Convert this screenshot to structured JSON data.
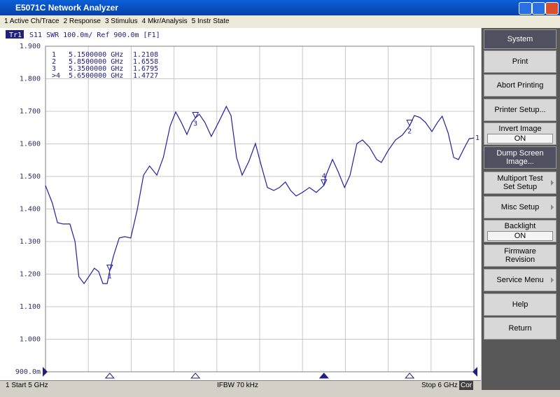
{
  "window": {
    "title": "E5071C Network Analyzer"
  },
  "menu": [
    "1 Active Ch/Trace",
    "2 Response",
    "3 Stimulus",
    "4 Mkr/Analysis",
    "5 Instr State"
  ],
  "softkeys": {
    "header": "System",
    "buttons": [
      {
        "label": "Print"
      },
      {
        "label": "Abort Printing"
      },
      {
        "label": "Printer Setup..."
      },
      {
        "label": "Invert Image",
        "state": "ON"
      },
      {
        "label": "Dump Screen Image...",
        "dark": true
      },
      {
        "label": "Multiport Test Set Setup",
        "arrow": true
      },
      {
        "label": "Misc Setup",
        "arrow": true
      },
      {
        "label": "Backlight",
        "state": "ON"
      },
      {
        "label": "Firmware Revision"
      },
      {
        "label": "Service Menu",
        "arrow": true
      },
      {
        "label": "Help"
      },
      {
        "label": "Return"
      }
    ]
  },
  "status": {
    "start": "1 Start 5 GHz",
    "ifbw": "IFBW 70 kHz",
    "stop": "Stop 6 GHz",
    "cor": "Cor"
  },
  "chart_data": {
    "type": "line",
    "trace_name": "Tr1",
    "title": "S11 SWR 100.0m/ Ref 900.0m [F1]",
    "color": "#2020a0",
    "x": [
      5.0,
      5.016,
      5.028,
      5.041,
      5.057,
      5.069,
      5.078,
      5.09,
      5.101,
      5.114,
      5.124,
      5.134,
      5.144,
      5.15,
      5.159,
      5.172,
      5.185,
      5.199,
      5.214,
      5.229,
      5.243,
      5.26,
      5.275,
      5.291,
      5.304,
      5.317,
      5.33,
      5.342,
      5.35,
      5.359,
      5.372,
      5.387,
      5.404,
      5.422,
      5.433,
      5.446,
      5.459,
      5.475,
      5.49,
      5.503,
      5.518,
      5.533,
      5.546,
      5.56,
      5.572,
      5.585,
      5.6,
      5.616,
      5.632,
      5.65,
      5.655,
      5.67,
      5.683,
      5.698,
      5.711,
      5.727,
      5.74,
      5.756,
      5.773,
      5.784,
      5.8,
      5.817,
      5.833,
      5.85,
      5.861,
      5.874,
      5.887,
      5.902,
      5.915,
      5.926,
      5.94,
      5.953,
      5.964,
      5.977,
      5.989,
      6.0
    ],
    "values": [
      1.472,
      1.418,
      1.358,
      1.354,
      1.354,
      1.3,
      1.192,
      1.171,
      1.192,
      1.218,
      1.208,
      1.171,
      1.171,
      1.2108,
      1.257,
      1.311,
      1.315,
      1.311,
      1.397,
      1.504,
      1.532,
      1.504,
      1.558,
      1.655,
      1.698,
      1.666,
      1.629,
      1.666,
      1.6795,
      1.691,
      1.666,
      1.623,
      1.666,
      1.715,
      1.687,
      1.558,
      1.504,
      1.547,
      1.601,
      1.537,
      1.466,
      1.457,
      1.466,
      1.483,
      1.457,
      1.44,
      1.451,
      1.466,
      1.451,
      1.4727,
      1.504,
      1.552,
      1.515,
      1.466,
      1.504,
      1.601,
      1.612,
      1.59,
      1.552,
      1.543,
      1.58,
      1.612,
      1.627,
      1.6558,
      1.687,
      1.681,
      1.666,
      1.638,
      1.666,
      1.685,
      1.633,
      1.558,
      1.552,
      1.586,
      1.616,
      1.618
    ],
    "xlim": [
      5,
      6
    ],
    "ylim": [
      0.9,
      1.9
    ],
    "yticks": [
      {
        "value": 0.9,
        "label": "900.0m"
      },
      {
        "value": 1.0,
        "label": "1.000"
      },
      {
        "value": 1.1,
        "label": "1.100"
      },
      {
        "value": 1.2,
        "label": "1.200"
      },
      {
        "value": 1.3,
        "label": "1.300"
      },
      {
        "value": 1.4,
        "label": "1.400"
      },
      {
        "value": 1.5,
        "label": "1.500"
      },
      {
        "value": 1.6,
        "label": "1.600"
      },
      {
        "value": 1.7,
        "label": "1.700"
      },
      {
        "value": 1.8,
        "label": "1.800"
      },
      {
        "value": 1.9,
        "label": "1.900"
      }
    ],
    "grid": true,
    "markers": [
      {
        "name": "1",
        "x": 5.15,
        "x_label": "5.1500000 GHz",
        "value": 1.2108
      },
      {
        "name": "2",
        "x": 5.85,
        "x_label": "5.8500000 GHz",
        "value": 1.6558
      },
      {
        "name": "3",
        "x": 5.35,
        "x_label": "5.3500000 GHz",
        "value": 1.6795
      },
      {
        "name": "4",
        "x": 5.65,
        "x_label": "5.6500000 GHz",
        "value": 1.4727,
        "active": true
      }
    ],
    "marker_table": [
      "1",
      "2",
      "3",
      ">4"
    ],
    "trace_end_label": "1"
  }
}
